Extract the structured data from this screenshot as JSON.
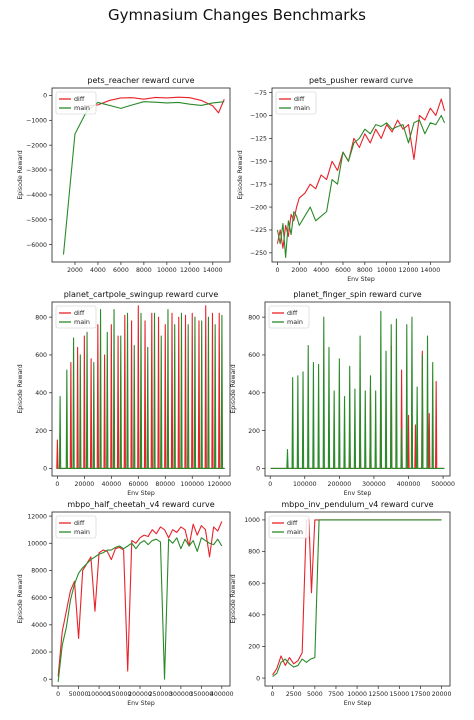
{
  "figure": {
    "title": "Gymnasium Changes Benchmarks"
  },
  "chart_data": [
    {
      "type": "line",
      "title": "pets_reacher reward curve",
      "xlabel": "",
      "ylabel": "Episode Reward",
      "xlim": [
        0,
        15500
      ],
      "ylim": [
        -6700,
        300
      ],
      "xticks": [
        2000,
        4000,
        6000,
        8000,
        10000,
        12000,
        14000
      ],
      "yticks": [
        0,
        -1000,
        -2000,
        -3000,
        -4000,
        -5000,
        -6000
      ],
      "legend": "top-left",
      "series": [
        {
          "name": "diff",
          "color": "#e8222a",
          "x": [
            3000,
            4000,
            5000,
            6000,
            7000,
            8000,
            9000,
            10000,
            11000,
            12000,
            13000,
            14000,
            14500,
            15000
          ],
          "y": [
            -420,
            -380,
            -200,
            -100,
            -90,
            -150,
            -80,
            -100,
            -70,
            -90,
            -200,
            -420,
            -700,
            -150
          ]
        },
        {
          "name": "main",
          "color": "#2a8a2a",
          "x": [
            1000,
            2000,
            3000,
            4000,
            6000,
            7000,
            8000,
            9000,
            10000,
            11000,
            12000,
            13000,
            14000,
            15000
          ],
          "y": [
            -6400,
            -1550,
            -650,
            -280,
            -520,
            -380,
            -250,
            -270,
            -300,
            -280,
            -350,
            -400,
            -300,
            -250
          ]
        }
      ]
    },
    {
      "type": "line",
      "title": "pets_pusher reward curve",
      "xlabel": "Env Step",
      "ylabel": "Episode Reward",
      "xlim": [
        -500,
        15800
      ],
      "ylim": [
        -260,
        -70
      ],
      "xticks": [
        0,
        2000,
        4000,
        6000,
        8000,
        10000,
        12000,
        14000
      ],
      "yticks": [
        -75,
        -100,
        -125,
        -150,
        -175,
        -200,
        -225,
        -250
      ],
      "legend": "top-left",
      "series": [
        {
          "name": "diff",
          "color": "#e8222a",
          "x": [
            0,
            250,
            500,
            750,
            1000,
            1250,
            1500,
            1750,
            2000,
            2500,
            3000,
            3500,
            4000,
            4500,
            5000,
            5500,
            6000,
            6500,
            7000,
            7500,
            8000,
            8500,
            9000,
            9500,
            10000,
            10500,
            11000,
            11500,
            12000,
            12500,
            13000,
            13500,
            14000,
            14500,
            15000,
            15300
          ],
          "y": [
            -240,
            -225,
            -245,
            -220,
            -232,
            -208,
            -215,
            -200,
            -190,
            -185,
            -175,
            -180,
            -165,
            -170,
            -150,
            -160,
            -140,
            -150,
            -125,
            -135,
            -120,
            -130,
            -115,
            -125,
            -110,
            -118,
            -105,
            -115,
            -110,
            -148,
            -100,
            -105,
            -92,
            -100,
            -82,
            -95
          ]
        },
        {
          "name": "main",
          "color": "#2a8a2a",
          "x": [
            0,
            250,
            500,
            750,
            1000,
            1250,
            1500,
            1750,
            2000,
            2500,
            3000,
            3500,
            4000,
            4500,
            5000,
            5500,
            6000,
            6500,
            7000,
            7500,
            8000,
            8500,
            9000,
            9500,
            10000,
            10500,
            11000,
            11500,
            12000,
            12500,
            13000,
            13500,
            14000,
            14500,
            15000,
            15300
          ],
          "y": [
            -225,
            -240,
            -218,
            -255,
            -215,
            -230,
            -205,
            -210,
            -220,
            -210,
            -200,
            -215,
            -210,
            -205,
            -170,
            -175,
            -140,
            -150,
            -130,
            -125,
            -115,
            -120,
            -110,
            -112,
            -108,
            -115,
            -112,
            -110,
            -130,
            -108,
            -105,
            -120,
            -108,
            -110,
            -100,
            -108
          ]
        }
      ]
    },
    {
      "type": "line",
      "title": "planet_cartpole_swingup reward curve",
      "xlabel": "Env Step",
      "ylabel": "Episode Reward",
      "xlim": [
        -4000,
        128000
      ],
      "ylim": [
        -40,
        880
      ],
      "xticks": [
        0,
        20000,
        40000,
        60000,
        80000,
        100000,
        120000
      ],
      "yticks": [
        0,
        200,
        400,
        600,
        800
      ],
      "legend": "top-left",
      "spikes": true,
      "series": [
        {
          "name": "diff",
          "color": "#e8222a",
          "x": [
            0,
            5000,
            10000,
            15000,
            20000,
            25000,
            30000,
            35000,
            40000,
            45000,
            50000,
            55000,
            60000,
            65000,
            70000,
            75000,
            80000,
            85000,
            90000,
            95000,
            100000,
            105000,
            110000,
            115000,
            120000
          ],
          "y": [
            150,
            0,
            560,
            640,
            700,
            580,
            760,
            600,
            760,
            700,
            810,
            780,
            860,
            780,
            820,
            800,
            760,
            820,
            800,
            810,
            820,
            780,
            860,
            820,
            820
          ]
        },
        {
          "name": "main",
          "color": "#2a8a2a",
          "x": [
            2000,
            7000,
            12000,
            17000,
            22000,
            27000,
            32000,
            37000,
            42000,
            47000,
            52000,
            57000,
            62000,
            67000,
            72000,
            77000,
            82000,
            87000,
            92000,
            97000,
            102000,
            107000,
            112000,
            117000,
            122000
          ],
          "y": [
            380,
            520,
            690,
            600,
            720,
            560,
            840,
            720,
            840,
            700,
            820,
            650,
            820,
            640,
            820,
            700,
            840,
            760,
            820,
            760,
            800,
            780,
            800,
            760,
            810
          ]
        }
      ]
    },
    {
      "type": "line",
      "title": "planet_finger_spin reward curve",
      "xlabel": "Env Step",
      "ylabel": "Episode Reward",
      "xlim": [
        -15000,
        520000
      ],
      "ylim": [
        -40,
        880
      ],
      "xticks": [
        0,
        100000,
        200000,
        300000,
        400000,
        500000
      ],
      "yticks": [
        0,
        200,
        400,
        600,
        800
      ],
      "legend": "top-left",
      "spikes": true,
      "series": [
        {
          "name": "diff",
          "color": "#e8222a",
          "x": [
            230000,
            260000,
            290000,
            320000,
            350000,
            380000,
            400000,
            420000,
            440000,
            460000,
            480000
          ],
          "y": [
            150,
            330,
            430,
            500,
            650,
            520,
            280,
            230,
            620,
            290,
            460
          ]
        },
        {
          "name": "main",
          "color": "#2a8a2a",
          "x": [
            50000,
            65000,
            80000,
            95000,
            110000,
            125000,
            140000,
            155000,
            170000,
            185000,
            200000,
            215000,
            230000,
            245000,
            260000,
            275000,
            290000,
            305000,
            320000,
            335000,
            350000,
            365000,
            380000,
            395000,
            410000,
            425000,
            440000,
            455000,
            470000
          ],
          "y": [
            100,
            480,
            490,
            510,
            650,
            560,
            550,
            800,
            640,
            410,
            580,
            380,
            540,
            420,
            700,
            410,
            490,
            410,
            830,
            620,
            760,
            790,
            210,
            760,
            800,
            430,
            600,
            700,
            560
          ]
        }
      ]
    },
    {
      "type": "line",
      "title": "mbpo_half_cheetah_v4 reward curve",
      "xlabel": "Env Step",
      "ylabel": "Episode Reward",
      "xlim": [
        -15000,
        420000
      ],
      "ylim": [
        -500,
        12300
      ],
      "xticks": [
        0,
        50000,
        100000,
        150000,
        200000,
        250000,
        300000,
        350000,
        400000
      ],
      "xticklabels": [
        "0",
        "50000",
        "100000",
        "150000",
        "200000",
        "250000",
        "300000",
        "350000",
        "400000"
      ],
      "yticks": [
        0,
        2000,
        4000,
        6000,
        8000,
        10000,
        12000
      ],
      "legend": "top-left",
      "series": [
        {
          "name": "diff",
          "color": "#e8222a",
          "x": [
            0,
            10000,
            20000,
            30000,
            40000,
            50000,
            60000,
            70000,
            80000,
            90000,
            100000,
            110000,
            120000,
            130000,
            140000,
            150000,
            160000,
            170000,
            180000,
            190000,
            200000,
            210000,
            220000,
            230000,
            240000,
            250000,
            260000,
            270000,
            280000,
            290000,
            300000,
            310000,
            320000,
            330000,
            340000,
            350000,
            360000,
            370000,
            380000,
            390000,
            400000
          ],
          "y": [
            200,
            3500,
            5000,
            6500,
            7200,
            3000,
            8000,
            8500,
            9000,
            5000,
            9300,
            9500,
            9400,
            8800,
            9600,
            9700,
            9500,
            600,
            10200,
            10000,
            10400,
            10600,
            10500,
            11000,
            10700,
            11200,
            11000,
            10400,
            11000,
            10800,
            11200,
            11000,
            9800,
            11400,
            10600,
            11300,
            11000,
            9000,
            11200,
            10900,
            11600
          ]
        },
        {
          "name": "main",
          "color": "#2a8a2a",
          "x": [
            0,
            10000,
            20000,
            30000,
            40000,
            50000,
            60000,
            70000,
            80000,
            90000,
            100000,
            110000,
            120000,
            130000,
            140000,
            150000,
            160000,
            170000,
            180000,
            190000,
            200000,
            210000,
            220000,
            230000,
            240000,
            250000,
            260000,
            270000,
            280000,
            290000,
            300000,
            310000,
            320000,
            330000,
            340000,
            350000,
            360000,
            370000,
            380000,
            390000,
            400000
          ],
          "y": [
            -200,
            2500,
            3800,
            5800,
            7000,
            7800,
            8200,
            8500,
            8800,
            9000,
            9200,
            9300,
            9500,
            9500,
            9700,
            9800,
            9600,
            9800,
            10000,
            9600,
            10000,
            10200,
            9900,
            10200,
            10300,
            10100,
            0,
            10300,
            10000,
            10400,
            9600,
            10300,
            9800,
            10200,
            9400,
            10400,
            10200,
            10000,
            9900,
            10300,
            9800
          ]
        }
      ]
    },
    {
      "type": "line",
      "title": "mbpo_inv_pendulum_v4 reward curve",
      "xlabel": "Env Step",
      "ylabel": "Episode Reward",
      "xlim": [
        -900,
        21000
      ],
      "ylim": [
        -50,
        1050
      ],
      "xticks": [
        0,
        2500,
        5000,
        7500,
        10000,
        12500,
        15000,
        17500,
        20000
      ],
      "yticks": [
        0,
        200,
        400,
        600,
        800,
        1000
      ],
      "legend": "top-left",
      "series": [
        {
          "name": "diff",
          "color": "#e8222a",
          "x": [
            0,
            500,
            1000,
            1500,
            2000,
            2500,
            3000,
            3500,
            4000,
            4300,
            4600,
            5000,
            5500,
            6000,
            20000
          ],
          "y": [
            20,
            60,
            140,
            80,
            130,
            90,
            110,
            160,
            1000,
            1000,
            540,
            1000,
            1000,
            1000,
            1000
          ]
        },
        {
          "name": "main",
          "color": "#2a8a2a",
          "x": [
            0,
            500,
            1000,
            1500,
            2000,
            2500,
            3000,
            3500,
            4000,
            4500,
            5000,
            5500,
            6000,
            20000
          ],
          "y": [
            10,
            30,
            100,
            120,
            90,
            70,
            80,
            120,
            100,
            120,
            130,
            1000,
            1000,
            1000
          ]
        }
      ]
    }
  ]
}
